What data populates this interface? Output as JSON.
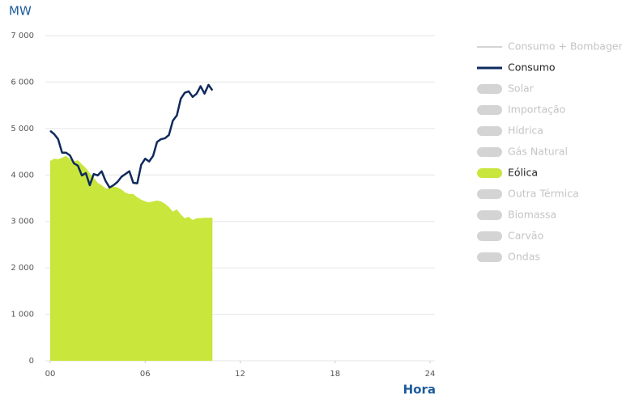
{
  "chart_data": {
    "type": "area",
    "y_label": "MW",
    "x_label": "Hora",
    "xlim": [
      0,
      24
    ],
    "xticks": [
      {
        "value": 0,
        "label": "00"
      },
      {
        "value": 6,
        "label": "06"
      },
      12,
      18,
      24
    ],
    "ylim": [
      0,
      7000
    ],
    "yticks": [
      0,
      {
        "value": 1000,
        "label": "1 000"
      },
      {
        "value": 2000,
        "label": "2 000"
      },
      {
        "value": 3000,
        "label": "3 000"
      },
      {
        "value": 4000,
        "label": "4 000"
      },
      {
        "value": 5000,
        "label": "5 000"
      },
      {
        "value": 6000,
        "label": "6 000"
      },
      {
        "value": 7000,
        "label": "7 000"
      }
    ],
    "grid": true,
    "x": [
      0,
      0.25,
      0.5,
      0.75,
      1,
      1.25,
      1.5,
      1.75,
      2,
      2.25,
      2.5,
      2.75,
      3,
      3.25,
      3.5,
      3.75,
      4,
      4.25,
      4.5,
      4.75,
      5,
      5.25,
      5.5,
      5.75,
      6,
      6.25,
      6.5,
      6.75,
      7,
      7.25,
      7.5,
      7.75,
      8,
      8.25,
      8.5,
      8.75,
      9,
      9.25,
      9.5,
      9.75,
      10,
      10.25
    ],
    "series": [
      {
        "name": "Consumo + Bombagem",
        "type": "line",
        "color": "#d4d4d4",
        "visible": false
      },
      {
        "name": "Consumo",
        "type": "line",
        "color": "#0f2a5c",
        "visible": true,
        "values": [
          4950,
          4880,
          4770,
          4480,
          4480,
          4420,
          4250,
          4200,
          3990,
          4040,
          3780,
          4020,
          3990,
          4080,
          3870,
          3730,
          3780,
          3850,
          3960,
          4020,
          4080,
          3830,
          3820,
          4220,
          4350,
          4290,
          4410,
          4710,
          4770,
          4790,
          4860,
          5170,
          5280,
          5640,
          5770,
          5800,
          5680,
          5750,
          5910,
          5750,
          5940,
          5820
        ]
      },
      {
        "name": "Solar",
        "type": "area",
        "color": "#d4d4d4",
        "visible": false
      },
      {
        "name": "Importação",
        "type": "area",
        "color": "#d4d4d4",
        "visible": false
      },
      {
        "name": "Hídrica",
        "type": "area",
        "color": "#d4d4d4",
        "visible": false
      },
      {
        "name": "Gás Natural",
        "type": "area",
        "color": "#d4d4d4",
        "visible": false
      },
      {
        "name": "Eólica",
        "type": "area",
        "color": "#c8e63c",
        "visible": true,
        "values": [
          4300,
          4350,
          4340,
          4370,
          4410,
          4340,
          4290,
          4320,
          4230,
          4150,
          4040,
          3940,
          3830,
          3780,
          3710,
          3710,
          3750,
          3730,
          3690,
          3620,
          3590,
          3590,
          3520,
          3470,
          3430,
          3410,
          3430,
          3450,
          3430,
          3380,
          3310,
          3210,
          3260,
          3150,
          3070,
          3100,
          3030,
          3070,
          3070,
          3080,
          3080,
          3080
        ]
      },
      {
        "name": "Outra Térmica",
        "type": "area",
        "color": "#d4d4d4",
        "visible": false
      },
      {
        "name": "Biomassa",
        "type": "area",
        "color": "#d4d4d4",
        "visible": false
      },
      {
        "name": "Carvão",
        "type": "area",
        "color": "#d4d4d4",
        "visible": false
      },
      {
        "name": "Ondas",
        "type": "area",
        "color": "#d4d4d4",
        "visible": false
      }
    ]
  }
}
